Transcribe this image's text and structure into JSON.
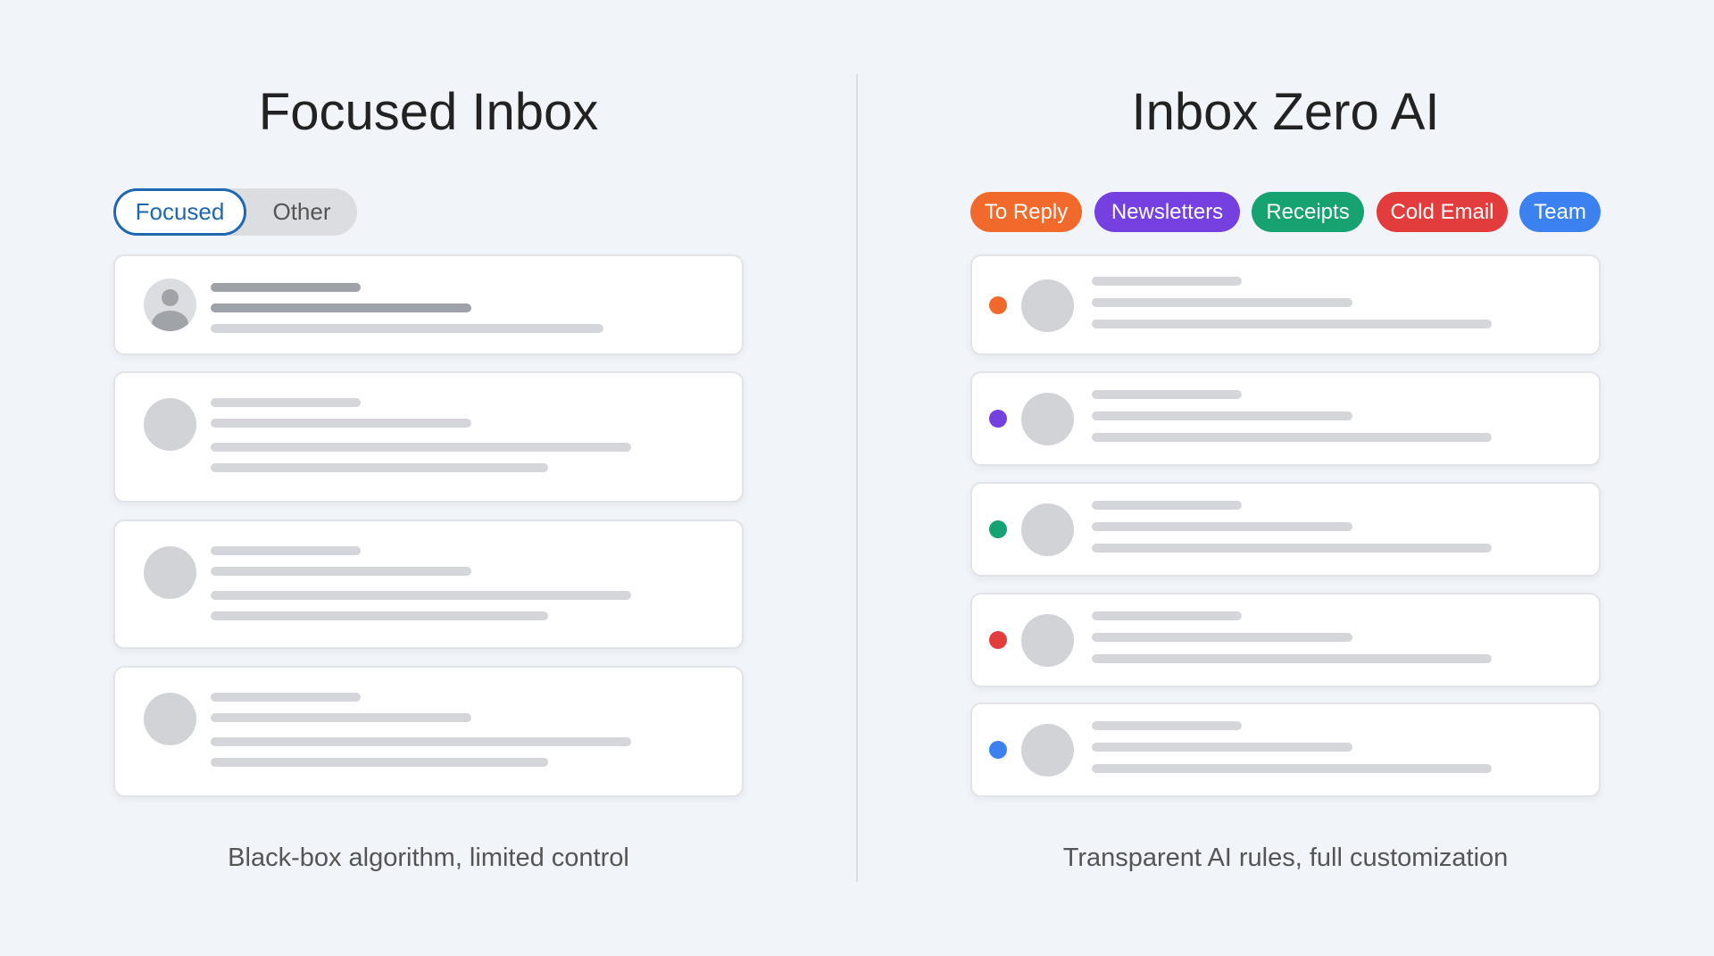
{
  "left": {
    "title": "Focused Inbox",
    "tabs": [
      {
        "label": "Focused",
        "active": true
      },
      {
        "label": "Other",
        "active": false
      }
    ],
    "caption": "Black-box algorithm, limited control",
    "accent": "#1f67b1"
  },
  "right": {
    "title": "Inbox Zero AI",
    "tags": [
      {
        "label": "To Reply",
        "color": "#f26a2b"
      },
      {
        "label": "Newsletters",
        "color": "#7440e0"
      },
      {
        "label": "Receipts",
        "color": "#17a272"
      },
      {
        "label": "Cold Email",
        "color": "#e23c3c"
      },
      {
        "label": "Team",
        "color": "#3b82f0"
      }
    ],
    "caption": "Transparent AI rules, full customization"
  }
}
